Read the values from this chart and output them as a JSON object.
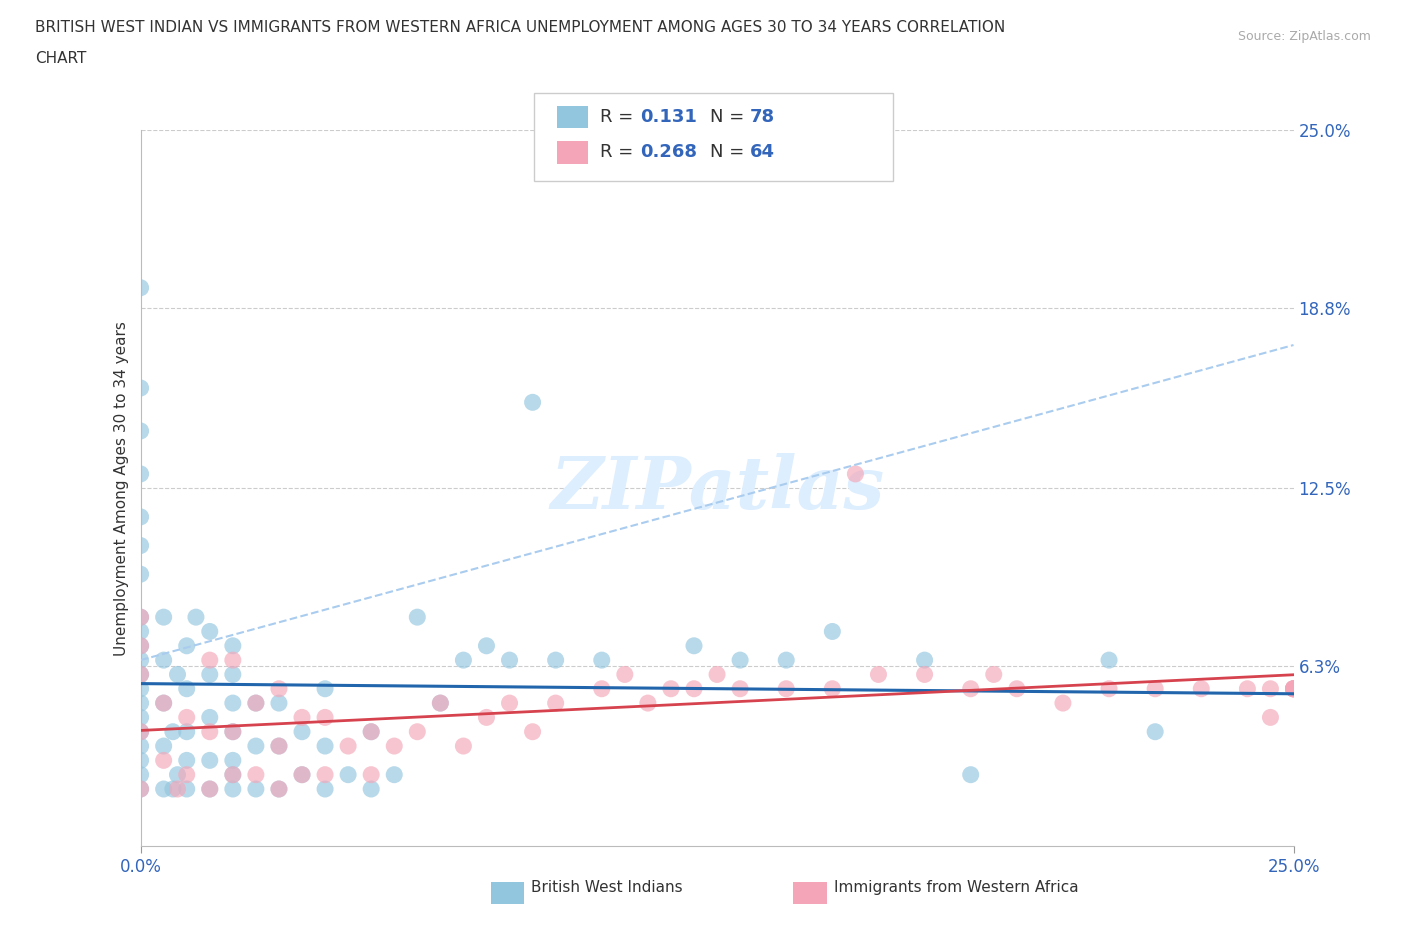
{
  "title_line1": "BRITISH WEST INDIAN VS IMMIGRANTS FROM WESTERN AFRICA UNEMPLOYMENT AMONG AGES 30 TO 34 YEARS CORRELATION",
  "title_line2": "CHART",
  "source_text": "Source: ZipAtlas.com",
  "ylabel": "Unemployment Among Ages 30 to 34 years",
  "xlim": [
    0.0,
    0.25
  ],
  "ylim": [
    0.0,
    0.25
  ],
  "xtick_vals": [
    0.0,
    0.25
  ],
  "xtick_labels": [
    "0.0%",
    "25.0%"
  ],
  "right_ytick_vals": [
    0.063,
    0.125,
    0.188,
    0.25
  ],
  "right_ytick_labels": [
    "6.3%",
    "12.5%",
    "18.8%",
    "25.0%"
  ],
  "R_blue": 0.131,
  "N_blue": 78,
  "R_pink": 0.268,
  "N_pink": 64,
  "blue_color": "#92c5de",
  "pink_color": "#f4a6b8",
  "blue_line_color": "#2166ac",
  "pink_line_color": "#d6434e",
  "dash_line_color": "#aaccee",
  "legend_label_blue": "British West Indians",
  "legend_label_pink": "Immigrants from Western Africa",
  "grid_color": "#cccccc",
  "label_color": "#3366bb",
  "text_color": "#333333",
  "watermark": "ZIPatlas",
  "blue_x": [
    0.0,
    0.0,
    0.0,
    0.0,
    0.0,
    0.0,
    0.0,
    0.0,
    0.0,
    0.0,
    0.0,
    0.0,
    0.0,
    0.0,
    0.0,
    0.0,
    0.0,
    0.0,
    0.0,
    0.0,
    0.005,
    0.005,
    0.005,
    0.005,
    0.005,
    0.007,
    0.007,
    0.008,
    0.008,
    0.01,
    0.01,
    0.01,
    0.01,
    0.01,
    0.012,
    0.015,
    0.015,
    0.015,
    0.015,
    0.015,
    0.02,
    0.02,
    0.02,
    0.02,
    0.02,
    0.02,
    0.02,
    0.025,
    0.025,
    0.025,
    0.03,
    0.03,
    0.03,
    0.035,
    0.035,
    0.04,
    0.04,
    0.04,
    0.045,
    0.05,
    0.05,
    0.055,
    0.06,
    0.065,
    0.07,
    0.075,
    0.08,
    0.085,
    0.09,
    0.1,
    0.12,
    0.13,
    0.14,
    0.15,
    0.17,
    0.18,
    0.21,
    0.22
  ],
  "blue_y": [
    0.02,
    0.025,
    0.03,
    0.035,
    0.04,
    0.045,
    0.05,
    0.055,
    0.06,
    0.065,
    0.07,
    0.075,
    0.08,
    0.095,
    0.105,
    0.115,
    0.13,
    0.145,
    0.16,
    0.195,
    0.02,
    0.035,
    0.05,
    0.065,
    0.08,
    0.02,
    0.04,
    0.025,
    0.06,
    0.02,
    0.03,
    0.04,
    0.055,
    0.07,
    0.08,
    0.02,
    0.03,
    0.045,
    0.06,
    0.075,
    0.02,
    0.025,
    0.03,
    0.04,
    0.05,
    0.06,
    0.07,
    0.02,
    0.035,
    0.05,
    0.02,
    0.035,
    0.05,
    0.025,
    0.04,
    0.02,
    0.035,
    0.055,
    0.025,
    0.02,
    0.04,
    0.025,
    0.08,
    0.05,
    0.065,
    0.07,
    0.065,
    0.155,
    0.065,
    0.065,
    0.07,
    0.065,
    0.065,
    0.075,
    0.065,
    0.025,
    0.065,
    0.04
  ],
  "pink_x": [
    0.0,
    0.0,
    0.0,
    0.0,
    0.0,
    0.005,
    0.005,
    0.008,
    0.01,
    0.01,
    0.015,
    0.015,
    0.015,
    0.02,
    0.02,
    0.02,
    0.025,
    0.025,
    0.03,
    0.03,
    0.03,
    0.035,
    0.035,
    0.04,
    0.04,
    0.045,
    0.05,
    0.05,
    0.055,
    0.06,
    0.065,
    0.07,
    0.075,
    0.08,
    0.085,
    0.09,
    0.1,
    0.105,
    0.11,
    0.115,
    0.12,
    0.125,
    0.13,
    0.14,
    0.15,
    0.155,
    0.16,
    0.17,
    0.18,
    0.185,
    0.19,
    0.2,
    0.21,
    0.22,
    0.23,
    0.24,
    0.245,
    0.245,
    0.25,
    0.25,
    0.25,
    0.25,
    0.25,
    0.25
  ],
  "pink_y": [
    0.02,
    0.04,
    0.06,
    0.07,
    0.08,
    0.03,
    0.05,
    0.02,
    0.025,
    0.045,
    0.02,
    0.04,
    0.065,
    0.025,
    0.04,
    0.065,
    0.025,
    0.05,
    0.02,
    0.035,
    0.055,
    0.025,
    0.045,
    0.025,
    0.045,
    0.035,
    0.025,
    0.04,
    0.035,
    0.04,
    0.05,
    0.035,
    0.045,
    0.05,
    0.04,
    0.05,
    0.055,
    0.06,
    0.05,
    0.055,
    0.055,
    0.06,
    0.055,
    0.055,
    0.055,
    0.13,
    0.06,
    0.06,
    0.055,
    0.06,
    0.055,
    0.05,
    0.055,
    0.055,
    0.055,
    0.055,
    0.045,
    0.055,
    0.055,
    0.055,
    0.055,
    0.055,
    0.055,
    0.055
  ]
}
